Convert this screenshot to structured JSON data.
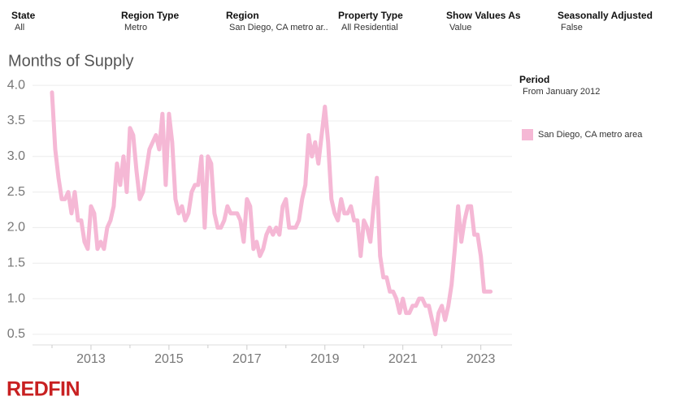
{
  "filters": [
    {
      "label": "State",
      "value": "All"
    },
    {
      "label": "Region Type",
      "value": "Metro"
    },
    {
      "label": "Region",
      "value": "San Diego, CA metro ar.."
    },
    {
      "label": "Property Type",
      "value": "All Residential"
    },
    {
      "label": "Show Values As",
      "value": "Value"
    },
    {
      "label": "Seasonally Adjusted",
      "value": "False"
    }
  ],
  "chart_data": {
    "type": "line",
    "title": "Months of Supply",
    "x": [
      2012,
      2012.083,
      2012.167,
      2012.25,
      2012.333,
      2012.417,
      2012.5,
      2012.583,
      2012.667,
      2012.75,
      2012.833,
      2012.917,
      2013,
      2013.083,
      2013.167,
      2013.25,
      2013.333,
      2013.417,
      2013.5,
      2013.583,
      2013.667,
      2013.75,
      2013.833,
      2013.917,
      2014,
      2014.083,
      2014.167,
      2014.25,
      2014.333,
      2014.417,
      2014.5,
      2014.583,
      2014.667,
      2014.75,
      2014.833,
      2014.917,
      2015,
      2015.083,
      2015.167,
      2015.25,
      2015.333,
      2015.417,
      2015.5,
      2015.583,
      2015.667,
      2015.75,
      2015.833,
      2015.917,
      2016,
      2016.083,
      2016.167,
      2016.25,
      2016.333,
      2016.417,
      2016.5,
      2016.583,
      2016.667,
      2016.75,
      2016.833,
      2016.917,
      2017,
      2017.083,
      2017.167,
      2017.25,
      2017.333,
      2017.417,
      2017.5,
      2017.583,
      2017.667,
      2017.75,
      2017.833,
      2017.917,
      2018,
      2018.083,
      2018.167,
      2018.25,
      2018.333,
      2018.417,
      2018.5,
      2018.583,
      2018.667,
      2018.75,
      2018.833,
      2018.917,
      2019,
      2019.083,
      2019.167,
      2019.25,
      2019.333,
      2019.417,
      2019.5,
      2019.583,
      2019.667,
      2019.75,
      2019.833,
      2019.917,
      2020,
      2020.083,
      2020.167,
      2020.25,
      2020.333,
      2020.417,
      2020.5,
      2020.583,
      2020.667,
      2020.75,
      2020.833,
      2020.917,
      2021,
      2021.083,
      2021.167,
      2021.25,
      2021.333,
      2021.417,
      2021.5,
      2021.583,
      2021.667,
      2021.75,
      2021.833,
      2021.917,
      2022,
      2022.083,
      2022.167,
      2022.25,
      2022.333,
      2022.417,
      2022.5,
      2022.583,
      2022.667,
      2022.75,
      2022.833,
      2022.917,
      2023,
      2023.083,
      2023.167,
      2023.25
    ],
    "series": [
      {
        "name": "San Diego, CA metro area",
        "color": "#f5b8d5",
        "values": [
          3.9,
          3.1,
          2.7,
          2.4,
          2.4,
          2.5,
          2.2,
          2.5,
          2.1,
          2.1,
          1.8,
          1.7,
          2.3,
          2.2,
          1.7,
          1.8,
          1.7,
          2.0,
          2.1,
          2.3,
          2.9,
          2.6,
          3.0,
          2.5,
          3.4,
          3.3,
          2.8,
          2.4,
          2.5,
          2.8,
          3.1,
          3.2,
          3.3,
          3.1,
          3.6,
          2.6,
          3.6,
          3.2,
          2.4,
          2.2,
          2.3,
          2.1,
          2.2,
          2.5,
          2.6,
          2.6,
          3.0,
          2.0,
          3.0,
          2.9,
          2.2,
          2.0,
          2.0,
          2.1,
          2.3,
          2.2,
          2.2,
          2.2,
          2.1,
          1.8,
          2.4,
          2.3,
          1.7,
          1.8,
          1.6,
          1.7,
          1.9,
          2.0,
          1.9,
          2.0,
          1.9,
          2.3,
          2.4,
          2.0,
          2.0,
          2.0,
          2.1,
          2.4,
          2.6,
          3.3,
          3.0,
          3.2,
          2.9,
          3.3,
          3.7,
          3.2,
          2.4,
          2.2,
          2.1,
          2.4,
          2.2,
          2.2,
          2.3,
          2.1,
          2.1,
          1.6,
          2.1,
          2.0,
          1.8,
          2.3,
          2.7,
          1.6,
          1.3,
          1.3,
          1.1,
          1.1,
          1.0,
          0.8,
          1.0,
          0.8,
          0.8,
          0.9,
          0.9,
          1.0,
          1.0,
          0.9,
          0.9,
          0.7,
          0.5,
          0.8,
          0.9,
          0.7,
          0.9,
          1.2,
          1.7,
          2.3,
          1.8,
          2.1,
          2.3,
          2.3,
          1.9,
          1.9,
          1.6,
          1.1,
          1.1,
          1.1
        ]
      }
    ],
    "xlim": [
      2011.5,
      2023.8
    ],
    "xticks": [
      2013,
      2015,
      2017,
      2019,
      2021,
      2023
    ],
    "xminorticks": [
      2012,
      2014,
      2016,
      2018,
      2020,
      2022
    ],
    "ylim": [
      0.35,
      4.15
    ],
    "yticks": [
      0.5,
      {
        "value": 1,
        "label": "1.0"
      },
      1.5,
      {
        "value": 2,
        "label": "2.0"
      },
      2.5,
      {
        "value": 3,
        "label": "3.0"
      },
      3.5,
      {
        "value": 4,
        "label": "4.0"
      }
    ],
    "grid": true,
    "legend_title": "Period",
    "legend_subtitle": "From January 2012"
  },
  "logo": "REDFIN"
}
